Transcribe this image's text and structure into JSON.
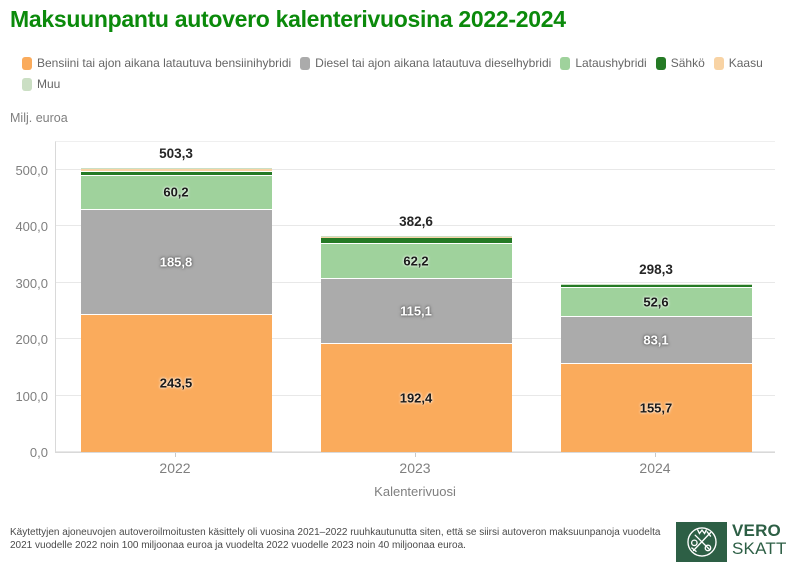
{
  "title": "Maksuunpantu autovero kalenterivuosina 2022-2024",
  "y_axis_unit": "Milj. euroa",
  "x_axis_title": "Kalenterivuosi",
  "footnote": "Käytettyjen ajoneuvojen autoveroilmoitusten käsittely oli vuosina 2021–2022 ruuhkautunutta siten, että se siirsi autoveron maksuunpanoja vuodelta 2021 vuodelle 2022 noin 100 miljoonaa euroa ja vuodelta 2022 vuodelle 2023 noin 40 miljoonaa euroa.",
  "logo": {
    "line1": "VERO",
    "line2": "SKATT"
  },
  "colors": {
    "title_green": "#0B8A0B",
    "logo_green": "#2D5F45",
    "grid": "#E8E8E8",
    "axis_line": "#D9D9D9",
    "axis_text": "#7F7F7F",
    "legend_text": "#666666"
  },
  "chart_data": {
    "type": "bar",
    "stacked": true,
    "title": "Maksuunpantu autovero kalenterivuosina 2022-2024",
    "xlabel": "Kalenterivuosi",
    "ylabel": "Milj. euroa",
    "ylim": [
      0,
      553
    ],
    "grid": true,
    "legend_position": "top",
    "categories": [
      "2022",
      "2023",
      "2024"
    ],
    "yticks": [
      {
        "v": 0,
        "label": "0,0"
      },
      {
        "v": 100,
        "label": "100,0"
      },
      {
        "v": 200,
        "label": "200,0"
      },
      {
        "v": 300,
        "label": "300,0"
      },
      {
        "v": 400,
        "label": "400,0"
      },
      {
        "v": 500,
        "label": "500,0"
      }
    ],
    "totals": [
      503.3,
      382.6,
      298.3
    ],
    "total_labels": [
      "503,3",
      "382,6",
      "298,3"
    ],
    "series": [
      {
        "name": "Bensiini tai ajon aikana latautuva bensiinihybridi",
        "color": "#FAAB5C",
        "values": [
          243.5,
          192.4,
          155.7
        ],
        "labels": [
          "243,5",
          "192,4",
          "155,7"
        ],
        "label_style": "dark"
      },
      {
        "name": "Diesel tai ajon aikana latautuva dieselhybridi",
        "color": "#ABABAB",
        "values": [
          185.8,
          115.1,
          83.1
        ],
        "labels": [
          "185,8",
          "115,1",
          "83,1"
        ],
        "label_style": "light"
      },
      {
        "name": "Lataushybridi",
        "color": "#9FD29C",
        "values": [
          60.2,
          62.2,
          52.6
        ],
        "labels": [
          "60,2",
          "62,2",
          "52,6"
        ],
        "label_style": "dark"
      },
      {
        "name": "Sähkö",
        "color": "#257A25",
        "values": [
          7.5,
          9.0,
          5.0
        ],
        "labels": [
          "",
          "",
          ""
        ],
        "label_style": "light",
        "estimated": true
      },
      {
        "name": "Kaasu",
        "color": "#F8D3A4",
        "values": [
          4.8,
          2.5,
          1.4
        ],
        "labels": [
          "",
          "",
          ""
        ],
        "label_style": "dark",
        "estimated": true
      },
      {
        "name": "Muu",
        "color": "#CBDFC4",
        "values": [
          1.5,
          1.4,
          0.5
        ],
        "labels": [
          "",
          "",
          ""
        ],
        "label_style": "dark",
        "estimated": true
      }
    ]
  }
}
